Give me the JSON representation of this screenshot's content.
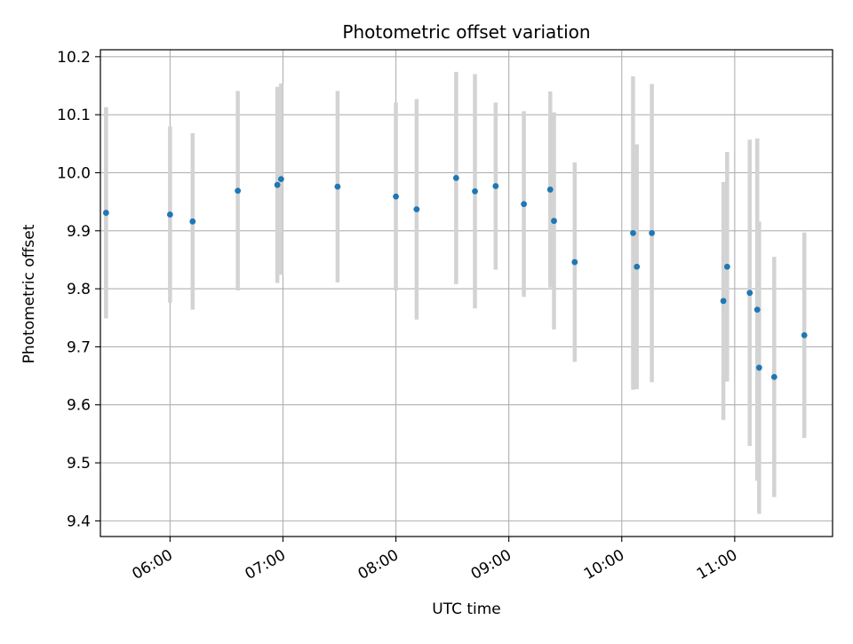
{
  "chart_data": {
    "type": "scatter",
    "title": "Photometric offset variation",
    "xlabel": "UTC time",
    "ylabel": "Photometric offset",
    "x_axis_type": "time",
    "xlim": [
      "05:23",
      "11:52"
    ],
    "ylim": [
      9.373,
      10.212
    ],
    "x_ticks": [
      "06:00",
      "07:00",
      "08:00",
      "09:00",
      "10:00",
      "11:00"
    ],
    "y_ticks": [
      9.4,
      9.5,
      9.6,
      9.7,
      9.8,
      9.9,
      10.0,
      10.1,
      10.2
    ],
    "grid": true,
    "legend": "none",
    "colors": {
      "marker": "#1f77b4",
      "errorbar": "#d3d3d3",
      "grid": "#b0b0b0",
      "axes": "#000000"
    },
    "points": [
      {
        "time": "05:26",
        "y": 9.931,
        "yerr": 0.182
      },
      {
        "time": "05:60",
        "y": 9.928,
        "yerr": 0.152
      },
      {
        "time": "06:12",
        "y": 9.916,
        "yerr": 0.152
      },
      {
        "time": "06:36",
        "y": 9.969,
        "yerr": 0.172
      },
      {
        "time": "06:57",
        "y": 9.979,
        "yerr": 0.169
      },
      {
        "time": "06:59",
        "y": 9.989,
        "yerr": 0.165
      },
      {
        "time": "07:29",
        "y": 9.976,
        "yerr": 0.165
      },
      {
        "time": "08:00",
        "y": 9.959,
        "yerr": 0.162
      },
      {
        "time": "08:11",
        "y": 9.937,
        "yerr": 0.19
      },
      {
        "time": "08:32",
        "y": 9.991,
        "yerr": 0.183
      },
      {
        "time": "08:42",
        "y": 9.968,
        "yerr": 0.202
      },
      {
        "time": "08:53",
        "y": 9.977,
        "yerr": 0.144
      },
      {
        "time": "09:08",
        "y": 9.946,
        "yerr": 0.16
      },
      {
        "time": "09:22",
        "y": 9.971,
        "yerr": 0.169
      },
      {
        "time": "09:24",
        "y": 9.917,
        "yerr": 0.187
      },
      {
        "time": "09:35",
        "y": 9.846,
        "yerr": 0.172
      },
      {
        "time": "10:06",
        "y": 9.896,
        "yerr": 0.27
      },
      {
        "time": "10:08",
        "y": 9.838,
        "yerr": 0.211
      },
      {
        "time": "10:16",
        "y": 9.896,
        "yerr": 0.257
      },
      {
        "time": "10:54",
        "y": 9.779,
        "yerr": 0.205
      },
      {
        "time": "10:56",
        "y": 9.838,
        "yerr": 0.198
      },
      {
        "time": "11:08",
        "y": 9.793,
        "yerr": 0.264
      },
      {
        "time": "11:12",
        "y": 9.764,
        "yerr": 0.295
      },
      {
        "time": "11:13",
        "y": 9.664,
        "yerr": 0.252
      },
      {
        "time": "11:21",
        "y": 9.648,
        "yerr": 0.207
      },
      {
        "time": "11:37",
        "y": 9.72,
        "yerr": 0.177
      }
    ]
  }
}
